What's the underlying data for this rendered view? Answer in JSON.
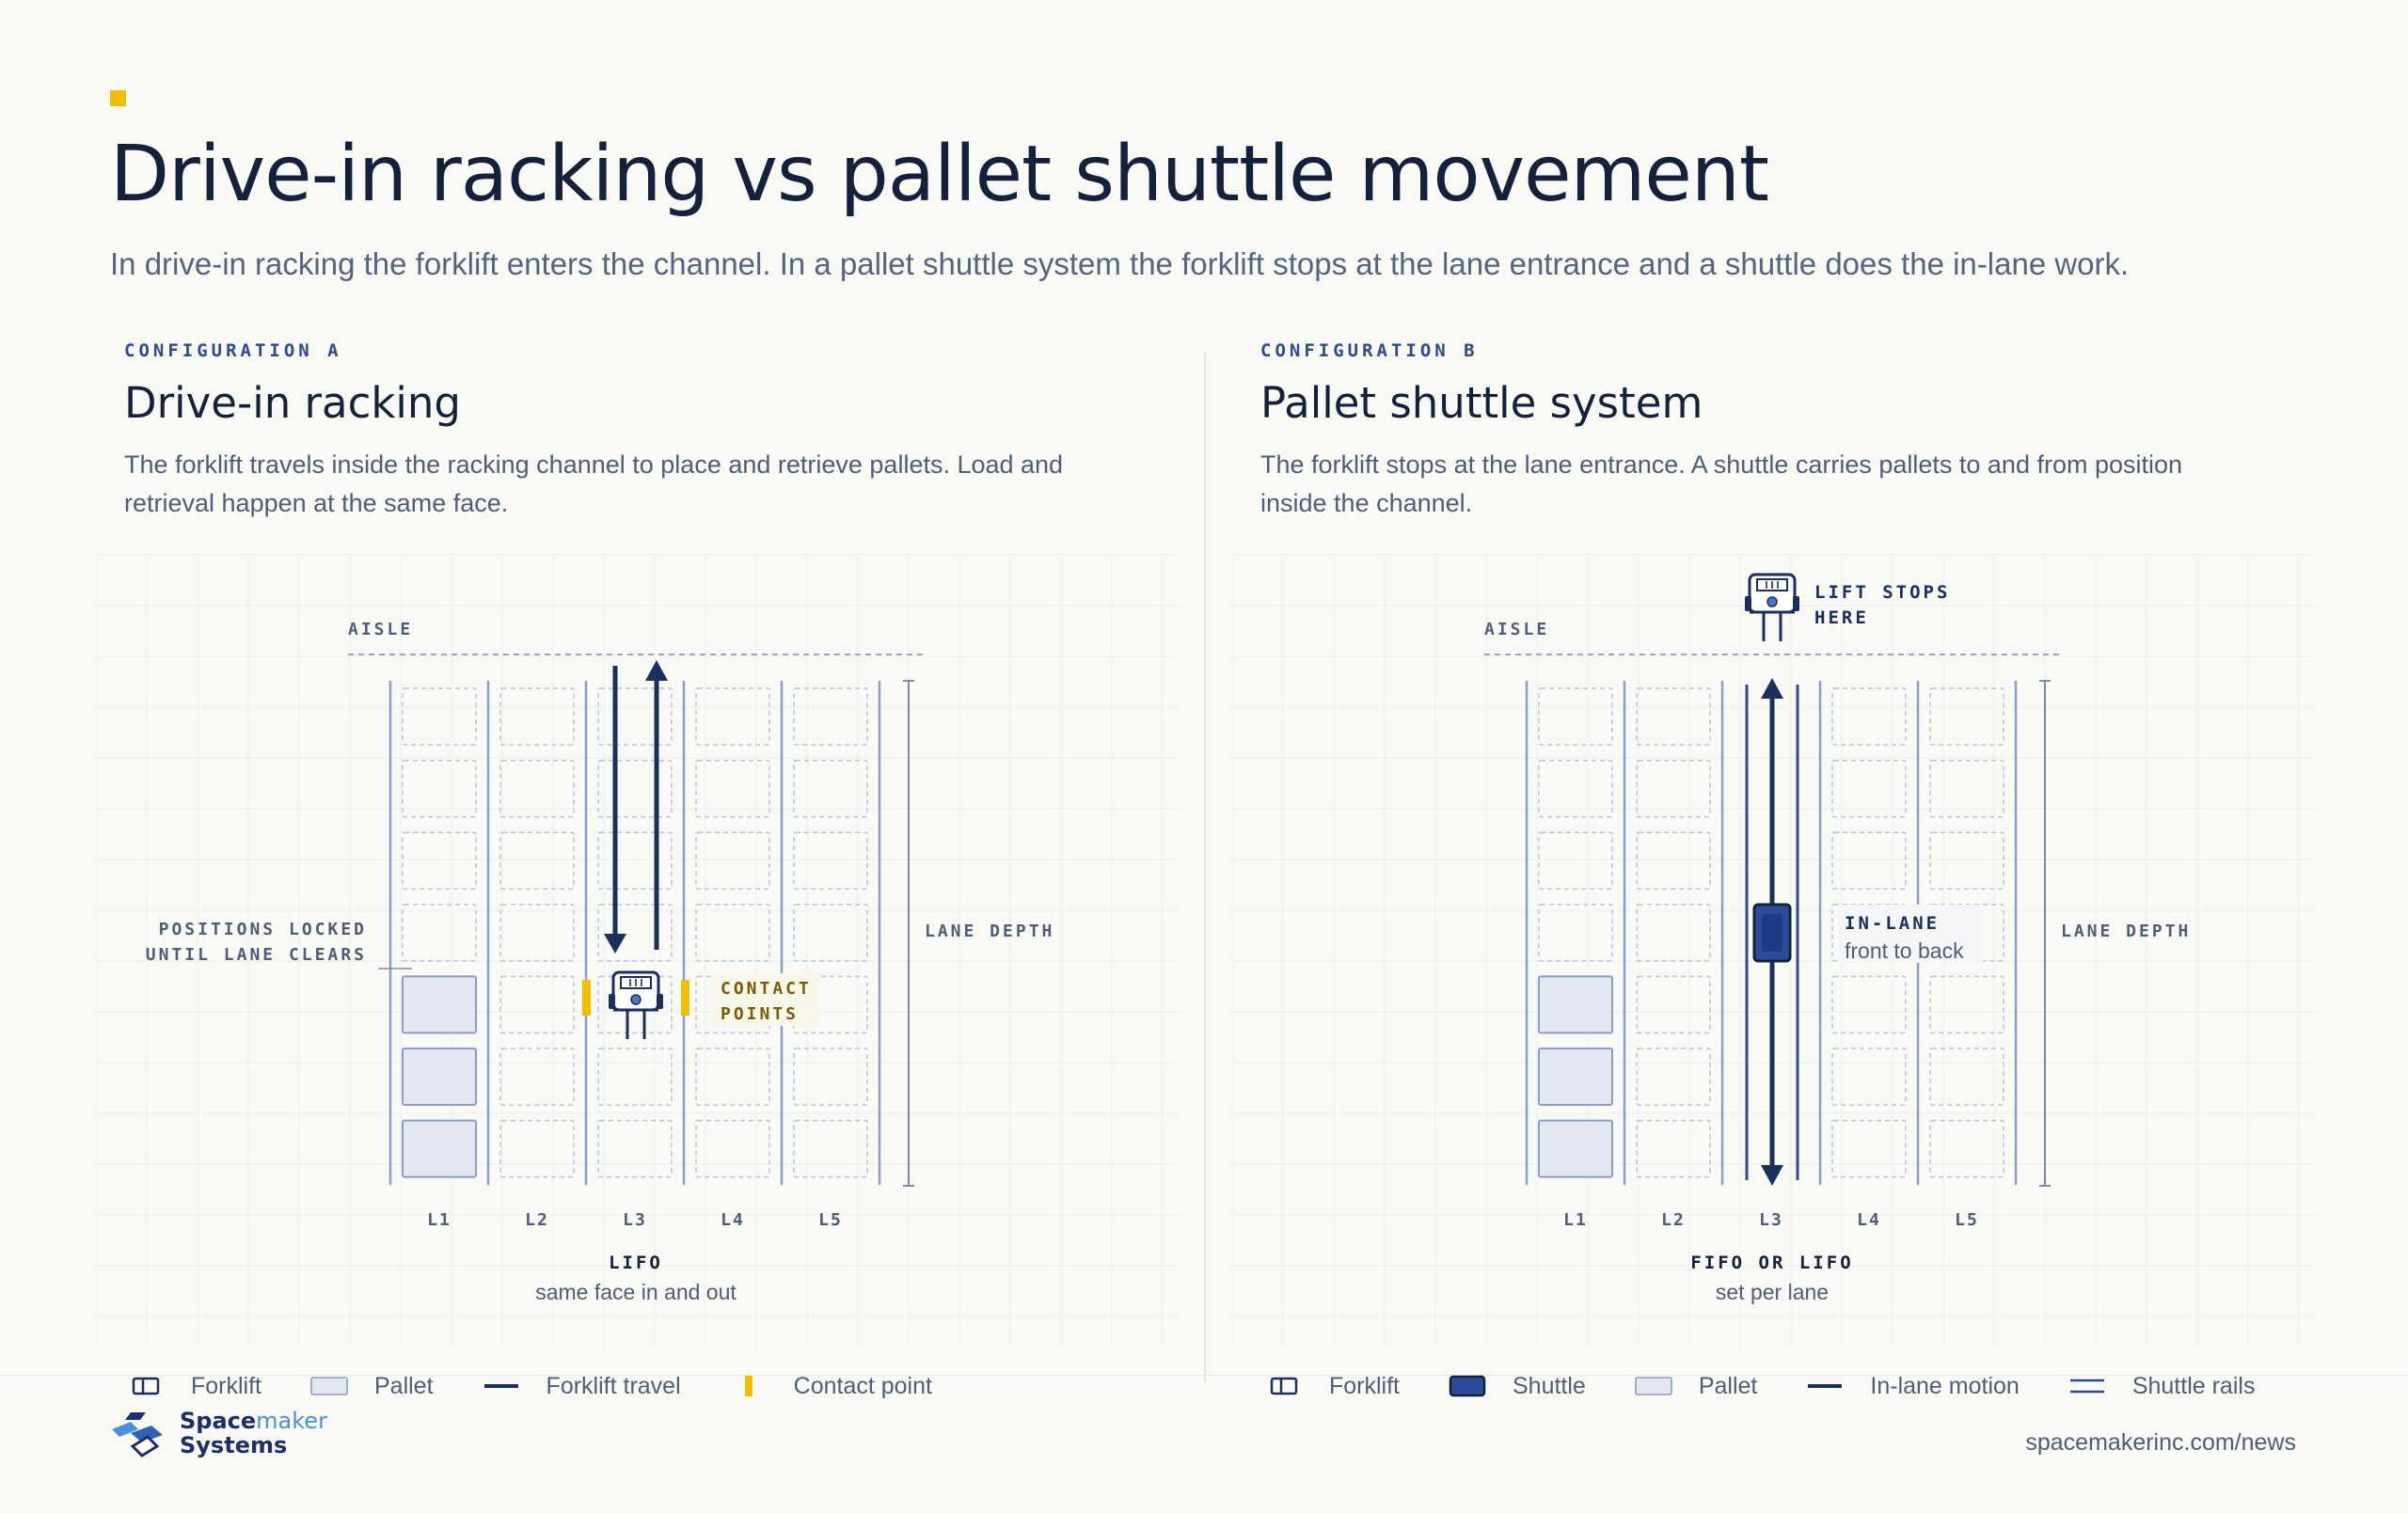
{
  "header": {
    "title": "Drive-in racking vs pallet shuttle movement",
    "subtitle": "In drive-in racking the forklift enters the channel. In a pallet shuttle system the forklift stops at the lane entrance and a shuttle does the in-lane work."
  },
  "colors": {
    "accent": "#f2bf00",
    "navy": "#1a2f5e",
    "rack_line": "#8c9cc9",
    "pallet_fill": "#e3e7f2",
    "slot_dash": "#b9c2dc",
    "grid": "#eceee9",
    "shuttle": "#2b4a9a"
  },
  "icons": {
    "forklift": "forklift-icon",
    "shuttle": "shuttle-icon",
    "pallet": "pallet-icon",
    "contact": "contact-point-icon"
  },
  "panels": {
    "a": {
      "config_label": "CONFIGURATION A",
      "title": "Drive-in racking",
      "description": "The forklift travels inside the racking channel to place and retrieve pallets. Load and retrieval happen at the same face.",
      "aisle_label": "AISLE",
      "depth_label": "LANE DEPTH",
      "lanes": [
        "L1",
        "L2",
        "L3",
        "L4",
        "L5"
      ],
      "rows": 7,
      "locked_label": [
        "POSITIONS LOCKED",
        "UNTIL LANE CLEARS"
      ],
      "contact_label": [
        "CONTACT",
        "POINTS"
      ],
      "mode_title": "LIFO",
      "mode_sub": "same face in and out",
      "pallets_in_l1_from_bottom": 3
    },
    "b": {
      "config_label": "CONFIGURATION B",
      "title": "Pallet shuttle system",
      "description": "The forklift stops at the lane entrance. A shuttle carries pallets to and from position inside the channel.",
      "aisle_label": "AISLE",
      "depth_label": "LANE DEPTH",
      "lanes": [
        "L1",
        "L2",
        "L3",
        "L4",
        "L5"
      ],
      "rows": 7,
      "lift_label": [
        "LIFT STOPS",
        "HERE"
      ],
      "inlane_title": "IN-LANE",
      "inlane_sub": "front to back",
      "mode_title": "FIFO OR LIFO",
      "mode_sub": "set per lane",
      "pallets_in_l1_from_bottom": 3
    }
  },
  "legend": {
    "a": [
      {
        "icon": "forklift-icon",
        "label": "Forklift"
      },
      {
        "icon": "pallet-icon",
        "label": "Pallet"
      },
      {
        "icon": "forklift-travel-icon",
        "label": "Forklift travel"
      },
      {
        "icon": "contact-point-icon",
        "label": "Contact point"
      }
    ],
    "b": [
      {
        "icon": "forklift-icon",
        "label": "Forklift"
      },
      {
        "icon": "shuttle-icon",
        "label": "Shuttle"
      },
      {
        "icon": "pallet-icon",
        "label": "Pallet"
      },
      {
        "icon": "in-lane-motion-icon",
        "label": "In-lane motion"
      },
      {
        "icon": "shuttle-rails-icon",
        "label": "Shuttle rails"
      }
    ]
  },
  "footer": {
    "brand_line1_a": "Space",
    "brand_line1_b": "maker",
    "brand_line2": "Systems",
    "url": "spacemakerinc.com/news"
  }
}
